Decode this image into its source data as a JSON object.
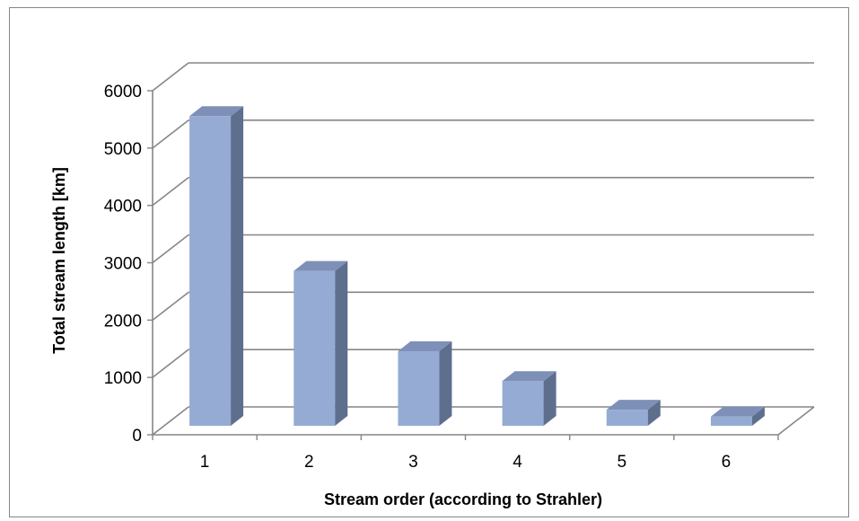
{
  "chart_data": {
    "type": "bar",
    "style": "3d",
    "categories": [
      "1",
      "2",
      "3",
      "4",
      "5",
      "6"
    ],
    "values": [
      5400,
      2700,
      1300,
      780,
      280,
      160
    ],
    "xlabel": "Stream order (according to Strahler)",
    "ylabel": "Total stream length [km]",
    "ylim": [
      0,
      6000
    ],
    "yticks": [
      "0",
      "1000",
      "2000",
      "3000",
      "4000",
      "5000",
      "6000"
    ],
    "grid": true,
    "legend": "none",
    "colors": {
      "bar_front": "#95ABD3",
      "bar_side": "#5E6F8E",
      "bar_top": "#7E90B8",
      "grid": "#868686"
    }
  }
}
